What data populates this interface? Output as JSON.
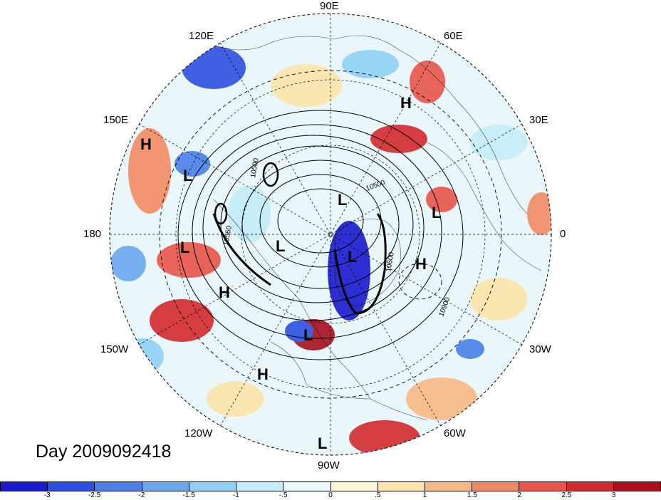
{
  "map": {
    "longitude_labels": {
      "top": "90E",
      "upper_left": "120E",
      "upper_right": "60E",
      "left_upper": "150E",
      "right_upper": "30E",
      "left": "180",
      "right": "0",
      "left_lower": "150W",
      "right_lower": "30W",
      "lower_left": "120W",
      "lower_right": "60W",
      "bottom": "90W"
    },
    "pressure_centers": [
      {
        "label": "H"
      },
      {
        "label": "H"
      },
      {
        "label": "L"
      },
      {
        "label": "L"
      },
      {
        "label": "L"
      },
      {
        "label": "L"
      },
      {
        "label": "L"
      },
      {
        "label": "H"
      },
      {
        "label": "H"
      },
      {
        "label": "L"
      },
      {
        "label": "H"
      },
      {
        "label": "L"
      },
      {
        "label": "L"
      }
    ],
    "contour_labels": [
      "10500",
      "10560",
      "10500",
      "10600",
      "10900"
    ],
    "date_label": "Day 2009092418"
  },
  "colorbar": {
    "colors": [
      "#1a1acf",
      "#2d4fe0",
      "#4a7fe8",
      "#6aa8f0",
      "#8fd0f5",
      "#c4ecfa",
      "#e8f8fc",
      "#fff6d6",
      "#fde3a8",
      "#f8b884",
      "#f28a64",
      "#e8554a",
      "#d22a2c",
      "#a80f1f"
    ],
    "tick_labels": [
      "-3",
      "-2.5",
      "-2",
      "-1.5",
      "-1",
      "-.5",
      "0",
      ".5",
      "1",
      "1.5",
      "2",
      "2.5",
      "3"
    ]
  }
}
